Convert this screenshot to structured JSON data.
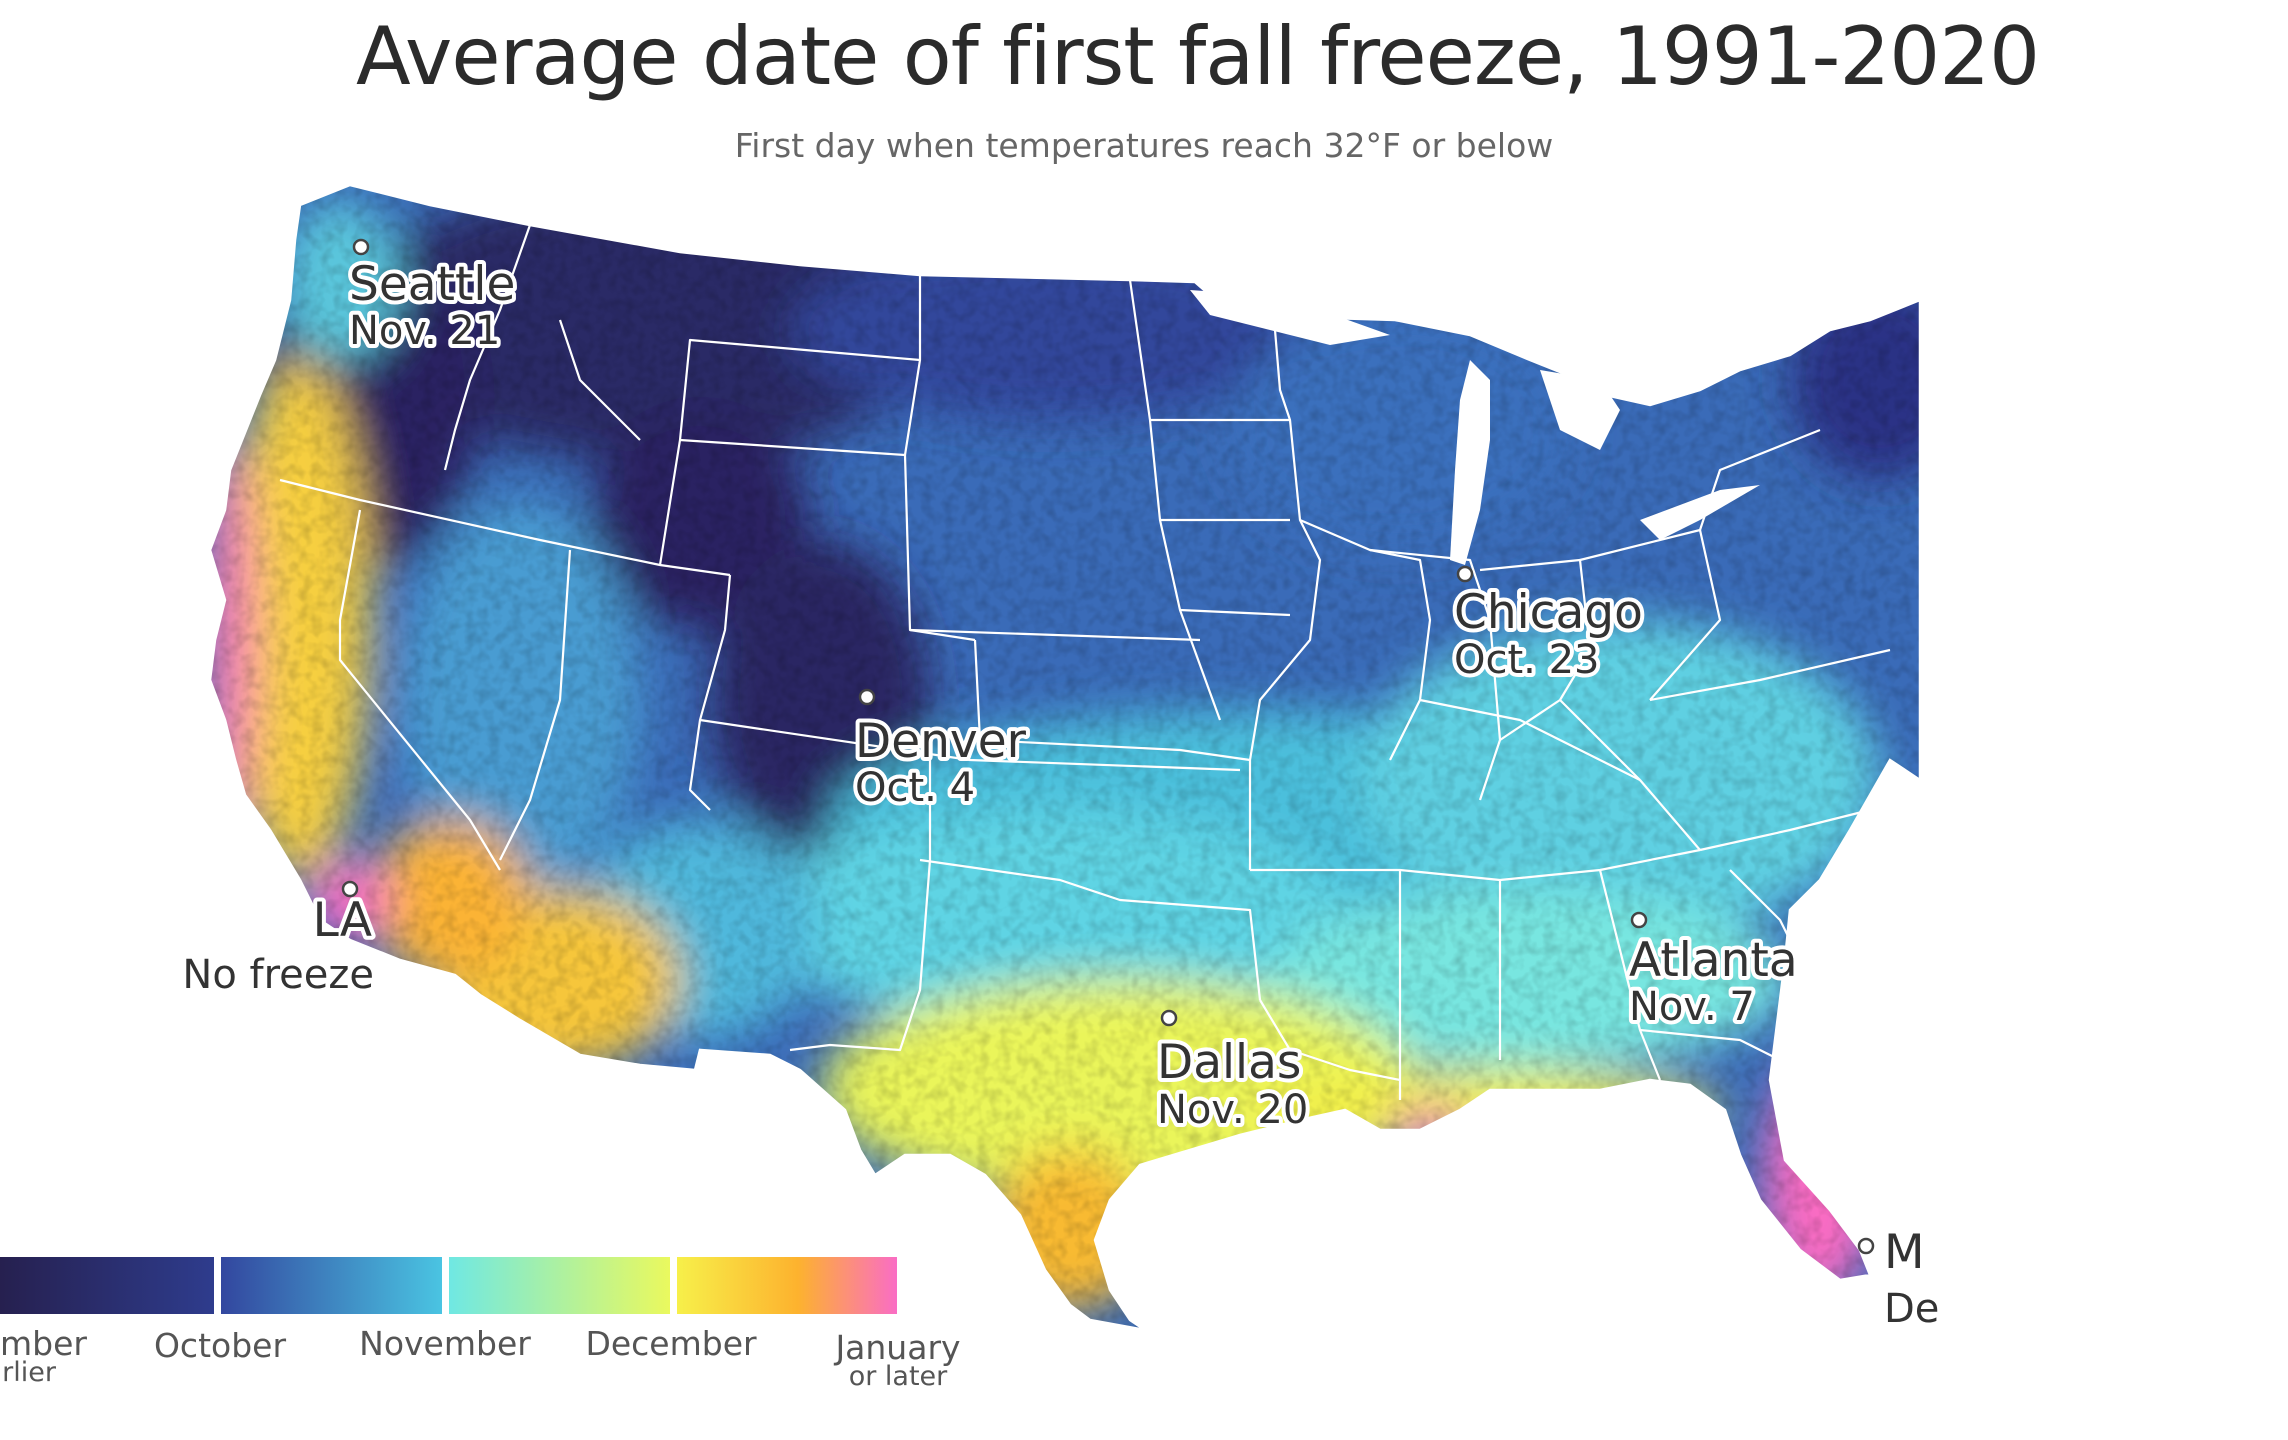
{
  "title": "Average date of first fall freeze, 1991-2020",
  "subtitle": "First day when temperatures reach 32°F or below",
  "colors": {
    "september": "#2a2462",
    "october": "#32479b",
    "november": "#4cc0de",
    "december": "#e9f95f",
    "january": "#fa6fc0",
    "state_border": "#ffffff",
    "background": "#ffffff"
  },
  "cities": [
    {
      "name": "Seattle",
      "date": "Nov. 21"
    },
    {
      "name": "Chicago",
      "date": "Oct. 23"
    },
    {
      "name": "Denver",
      "date": "Oct. 4"
    },
    {
      "name": "LA",
      "date": "No freeze"
    },
    {
      "name": "Dallas",
      "date": "Nov. 20"
    },
    {
      "name": "Atlanta",
      "date": "Nov. 7"
    },
    {
      "name": "M",
      "date": "De"
    }
  ],
  "legend": {
    "items": [
      {
        "label": "mber",
        "sublabel": "rlier"
      },
      {
        "label": "October",
        "sublabel": ""
      },
      {
        "label": "November",
        "sublabel": ""
      },
      {
        "label": "December",
        "sublabel": ""
      },
      {
        "label": "January",
        "sublabel": "or later"
      }
    ]
  }
}
